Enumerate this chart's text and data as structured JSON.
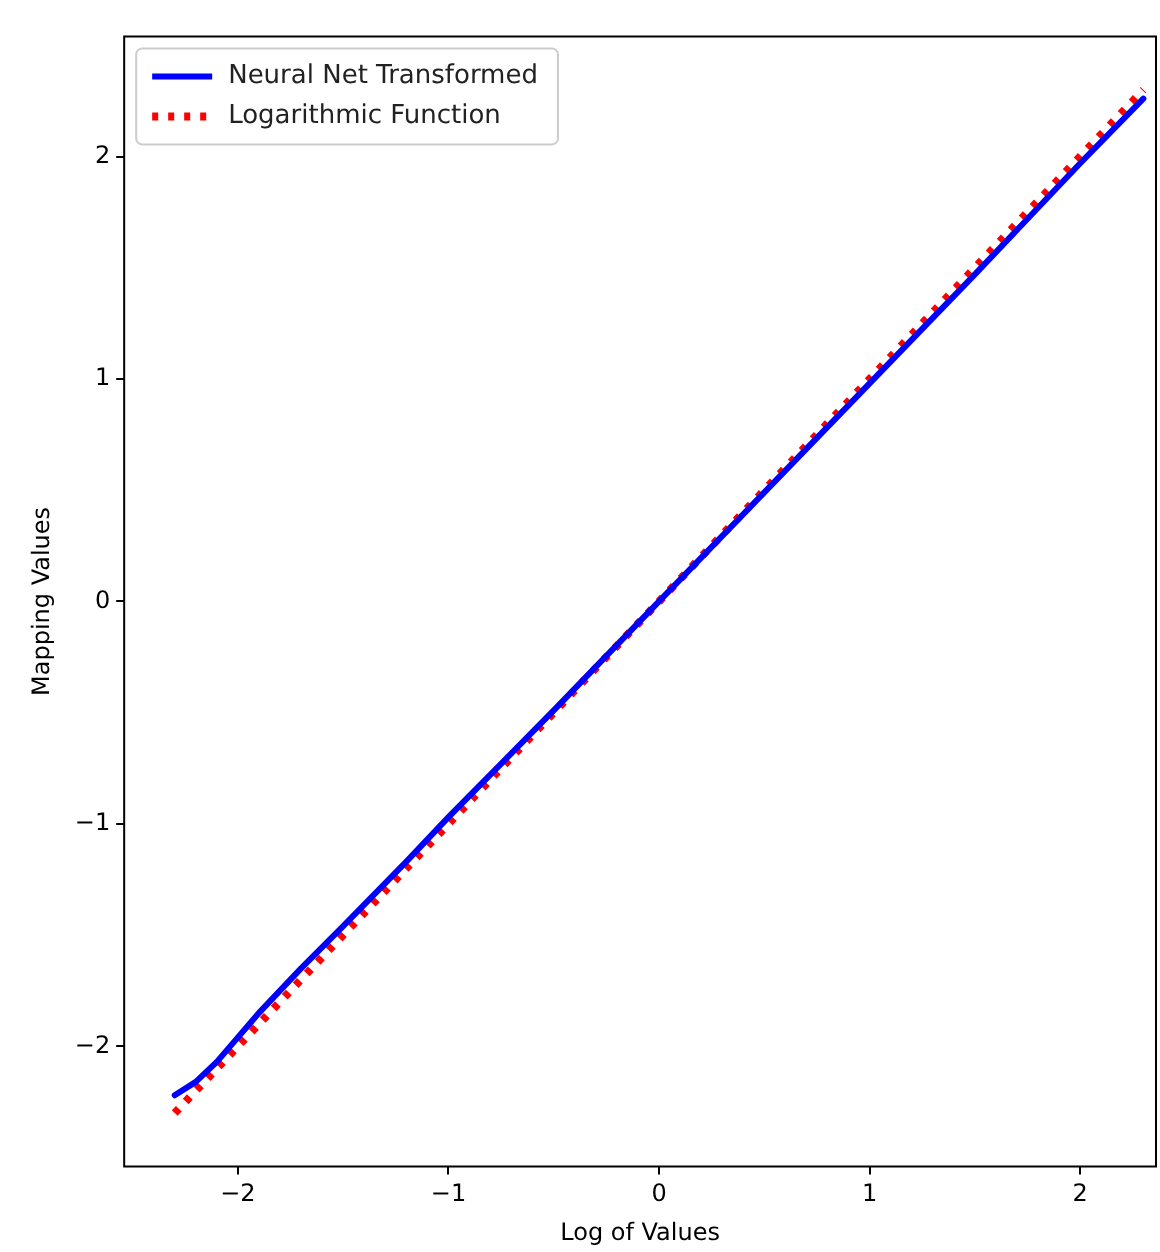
{
  "chart_data": {
    "type": "line",
    "xlabel": "Log of Values",
    "ylabel": "Mapping Values",
    "xlim": [
      -2.54,
      2.36
    ],
    "ylim": [
      -2.54,
      2.54
    ],
    "xticks": [
      {
        "value": -2,
        "label": "−2"
      },
      {
        "value": -1,
        "label": "−1"
      },
      0,
      1,
      2
    ],
    "yticks": [
      {
        "value": -2,
        "label": "−2"
      },
      {
        "value": -1,
        "label": "−1"
      },
      0,
      1,
      2
    ],
    "grid": false,
    "legend": "top left",
    "marker": "none",
    "series": [
      {
        "name": "Neural Net Transformed",
        "color": "#0000ff",
        "line_style": "solid",
        "x": [
          -2.3,
          -2.2,
          -2.1,
          -2.0,
          -1.9,
          -1.8,
          -1.7,
          -1.5,
          -1.2,
          -1.0,
          -0.5,
          0,
          0.5,
          1,
          1.5,
          2,
          2.3
        ],
        "values": [
          -2.22,
          -2.16,
          -2.07,
          -1.96,
          -1.85,
          -1.75,
          -1.65,
          -1.46,
          -1.17,
          -0.97,
          -0.49,
          0,
          0.49,
          0.98,
          1.47,
          1.97,
          2.26
        ]
      },
      {
        "name": "Logarithmic Function",
        "color": "#ff0000",
        "line_style": "dotted",
        "x": [
          -2.3,
          -1.5,
          0,
          1.5,
          2.3
        ],
        "values": [
          -2.3,
          -1.5,
          0,
          1.5,
          2.3
        ]
      }
    ]
  }
}
